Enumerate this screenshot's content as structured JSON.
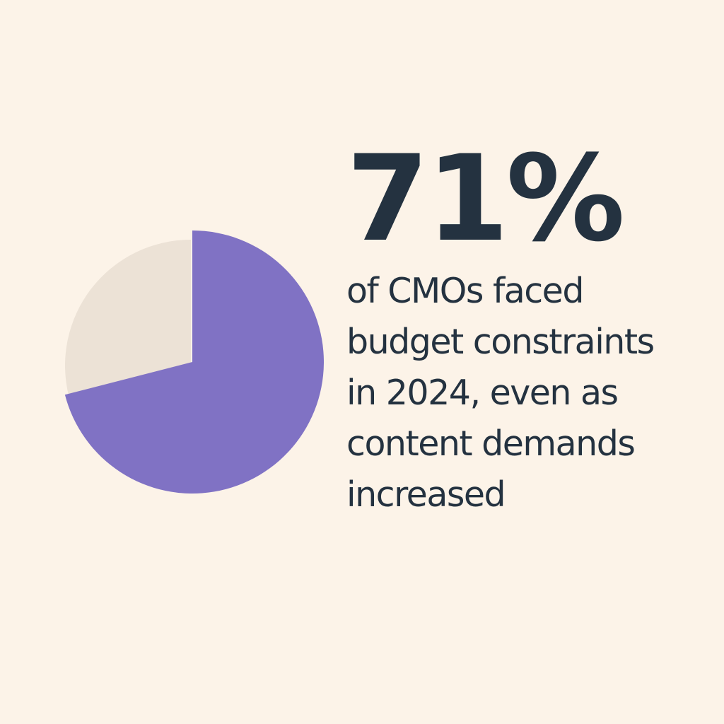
{
  "headline": {
    "stat": "71%",
    "caption_lines": [
      "of CMOs faced",
      "budget constraints",
      "in 2024, even as",
      "content demands",
      "increased"
    ]
  },
  "chart_data": {
    "type": "pie",
    "slices": [
      {
        "value": 71,
        "color": "#8072c4"
      },
      {
        "value": 29,
        "color": "#ece2d6"
      }
    ]
  }
}
